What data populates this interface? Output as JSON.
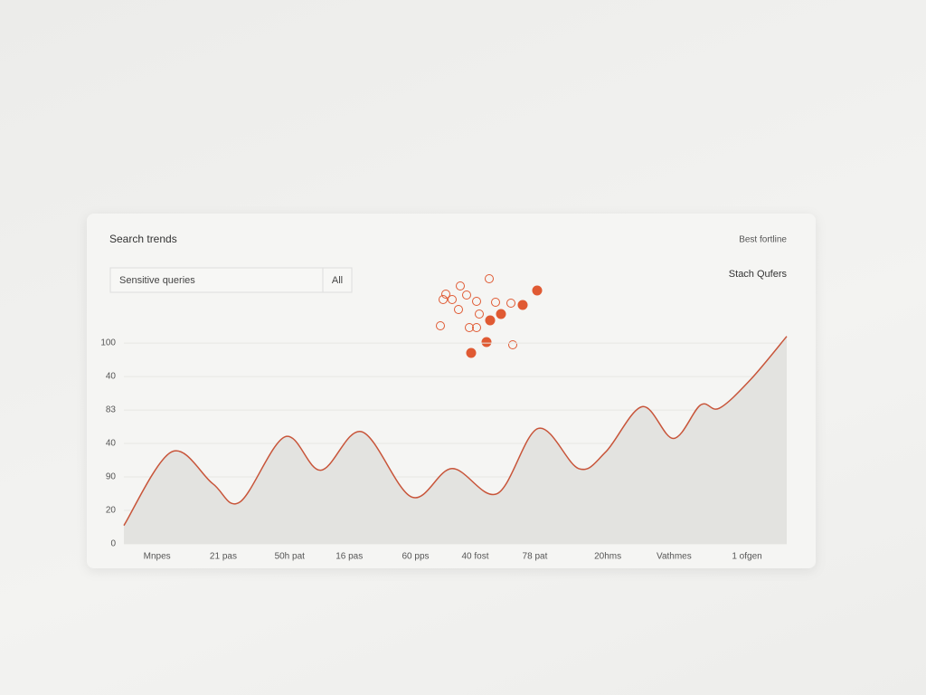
{
  "header": {
    "title": "Search trends",
    "right_link": "Best fortline",
    "search_input": "Sensitive queries",
    "filter_button": "All",
    "legend_title": "Stach Qufers"
  },
  "chart_data": {
    "type": "line",
    "color": "#c8553a",
    "area_color": "#e3e3e0",
    "grid": true,
    "x": [
      0,
      0.72,
      1.34,
      1.75,
      2.43,
      2.97,
      3.59,
      4.34,
      4.95,
      5.63,
      6.25,
      6.86,
      7.27,
      7.82,
      8.29,
      8.7,
      8.98,
      9.45,
      10
    ],
    "values": [
      11,
      55,
      36,
      25,
      64,
      44,
      67,
      28,
      45,
      30,
      69,
      45,
      55,
      82,
      63,
      83,
      81,
      98,
      124
    ],
    "xlim": [
      0,
      10
    ],
    "xticks": [
      {
        "value": 0.5,
        "label": "Mnpes"
      },
      {
        "value": 1.5,
        "label": "21 pas"
      },
      {
        "value": 2.5,
        "label": "50h pat"
      },
      {
        "value": 3.4,
        "label": "16 pas"
      },
      {
        "value": 4.4,
        "label": "60 pps"
      },
      {
        "value": 5.3,
        "label": "40 fost"
      },
      {
        "value": 6.2,
        "label": "78 pat"
      },
      {
        "value": 7.3,
        "label": "20hms"
      },
      {
        "value": 8.3,
        "label": "Vathmes"
      },
      {
        "value": 9.4,
        "label": "1 ofgen"
      }
    ],
    "ylim": [
      0,
      126
    ],
    "yticks": [
      0,
      20,
      {
        "value": 40,
        "label": "90"
      },
      {
        "value": 60,
        "label": "40"
      },
      {
        "value": 80,
        "label": "83"
      },
      {
        "value": 100,
        "label": "40"
      },
      {
        "value": 120,
        "label": "100"
      }
    ]
  }
}
